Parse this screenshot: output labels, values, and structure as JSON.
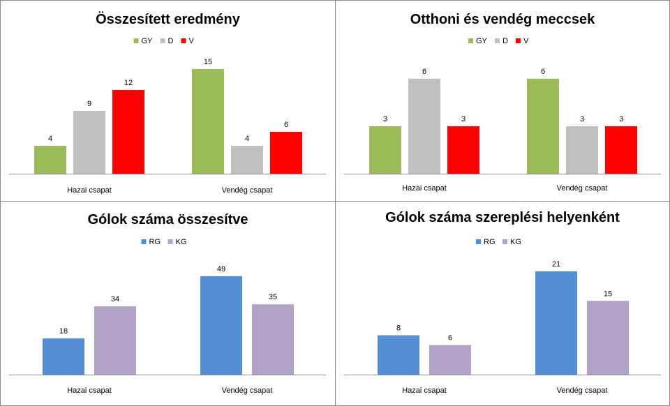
{
  "chart_data": [
    {
      "type": "bar",
      "title": "Összesített eredmény",
      "categories": [
        "Hazai csapat",
        "Vendég csapat"
      ],
      "series": [
        {
          "name": "GY",
          "color": "#9bbb59",
          "values": [
            4,
            15
          ]
        },
        {
          "name": "D",
          "color": "#c0c0c0",
          "values": [
            9,
            4
          ]
        },
        {
          "name": "V",
          "color": "#ff0000",
          "values": [
            12,
            6
          ]
        }
      ],
      "ylim": [
        0,
        18
      ],
      "grid": false,
      "legend": "top-center",
      "data_labels": true
    },
    {
      "type": "bar",
      "title": "Otthoni és vendég meccsek",
      "categories": [
        "Hazai csapat",
        "Vendég csapat"
      ],
      "series": [
        {
          "name": "GY",
          "color": "#9bbb59",
          "values": [
            3,
            6
          ]
        },
        {
          "name": "D",
          "color": "#c0c0c0",
          "values": [
            6,
            3
          ]
        },
        {
          "name": "V",
          "color": "#ff0000",
          "values": [
            3,
            3
          ]
        }
      ],
      "ylim": [
        0,
        8
      ],
      "grid": false,
      "legend": "top-center",
      "data_labels": true
    },
    {
      "type": "bar",
      "title": "Gólok száma összesítve",
      "categories": [
        "Hazai csapat",
        "Vendég csapat"
      ],
      "series": [
        {
          "name": "RG",
          "color": "#558ed5",
          "values": [
            18,
            49
          ]
        },
        {
          "name": "KG",
          "color": "#b3a2c7",
          "values": [
            34,
            35
          ]
        }
      ],
      "ylim": [
        0,
        60
      ],
      "grid": false,
      "legend": "top-center",
      "data_labels": true
    },
    {
      "type": "bar",
      "title": "Gólok száma szereplési helyenként",
      "categories": [
        "Hazai csapat",
        "Vendég csapat"
      ],
      "series": [
        {
          "name": "RG",
          "color": "#558ed5",
          "values": [
            8,
            21
          ]
        },
        {
          "name": "KG",
          "color": "#b3a2c7",
          "values": [
            6,
            15
          ]
        }
      ],
      "ylim": [
        0,
        25
      ],
      "grid": false,
      "legend": "top-center",
      "data_labels": true
    }
  ]
}
